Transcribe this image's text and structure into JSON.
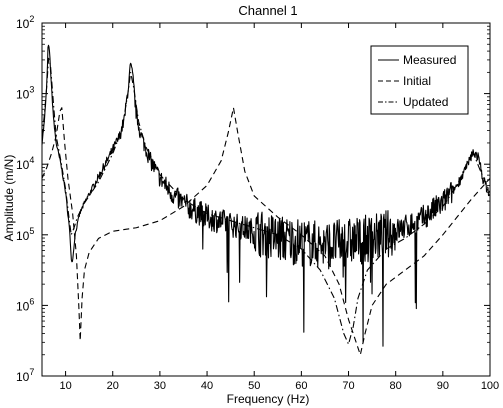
{
  "chart_data": {
    "type": "line",
    "title": "Channel  1",
    "xlabel": "Frequency (Hz)",
    "ylabel": "Amplitude (m/N)",
    "xlim": [
      5,
      100
    ],
    "ylim_exponents": [
      -7,
      -2
    ],
    "y_scale": "log",
    "x_ticks": [
      10,
      20,
      30,
      40,
      50,
      60,
      70,
      80,
      90,
      100
    ],
    "y_tick_labels": [
      {
        "exp": -2,
        "base": "10",
        "power": "2"
      },
      {
        "exp": -3,
        "base": "10",
        "power": "3"
      },
      {
        "exp": -4,
        "base": "10",
        "power": "4"
      },
      {
        "exp": -5,
        "base": "10",
        "power": "5"
      },
      {
        "exp": -6,
        "base": "10",
        "power": "6"
      },
      {
        "exp": -7,
        "base": "10",
        "power": "7"
      }
    ],
    "grid": false,
    "legend_position": "top-right",
    "series": [
      {
        "name": "Measured",
        "style": "solid",
        "noise": 0.18,
        "points": [
          [
            5.0,
            -3.7
          ],
          [
            5.5,
            -3.4
          ],
          [
            6.0,
            -2.9
          ],
          [
            6.3,
            -2.3
          ],
          [
            6.6,
            -2.4
          ],
          [
            7.0,
            -2.9
          ],
          [
            7.5,
            -3.4
          ],
          [
            8.0,
            -3.7
          ],
          [
            9.0,
            -4.0
          ],
          [
            10.0,
            -4.4
          ],
          [
            10.8,
            -4.9
          ],
          [
            11.3,
            -5.4
          ],
          [
            11.6,
            -5.3
          ],
          [
            12.0,
            -5.0
          ],
          [
            13.0,
            -4.7
          ],
          [
            14.0,
            -4.55
          ],
          [
            16.0,
            -4.3
          ],
          [
            18.0,
            -4.05
          ],
          [
            20.0,
            -3.8
          ],
          [
            21.5,
            -3.6
          ],
          [
            22.5,
            -3.35
          ],
          [
            23.3,
            -2.9
          ],
          [
            23.8,
            -2.6
          ],
          [
            24.3,
            -2.8
          ],
          [
            25.0,
            -3.3
          ],
          [
            26.0,
            -3.6
          ],
          [
            28.0,
            -3.95
          ],
          [
            30.0,
            -4.2
          ],
          [
            33.0,
            -4.45
          ],
          [
            36.0,
            -4.6
          ],
          [
            40.0,
            -4.75
          ],
          [
            45.0,
            -4.85
          ],
          [
            50.0,
            -4.95
          ],
          [
            55.0,
            -5.05
          ],
          [
            60.0,
            -5.1
          ],
          [
            65.0,
            -5.15
          ],
          [
            70.0,
            -5.1
          ],
          [
            75.0,
            -5.05
          ],
          [
            80.0,
            -4.95
          ],
          [
            85.0,
            -4.8
          ],
          [
            90.0,
            -4.55
          ],
          [
            93.0,
            -4.3
          ],
          [
            95.0,
            -4.05
          ],
          [
            96.5,
            -3.82
          ],
          [
            97.5,
            -3.9
          ],
          [
            98.5,
            -4.2
          ],
          [
            100.0,
            -4.45
          ]
        ]
      },
      {
        "name": "Initial",
        "style": "dashed",
        "points": [
          [
            5.0,
            -4.2
          ],
          [
            6.0,
            -4.05
          ],
          [
            7.0,
            -3.85
          ],
          [
            8.0,
            -3.6
          ],
          [
            8.8,
            -3.25
          ],
          [
            9.2,
            -3.2
          ],
          [
            9.8,
            -3.7
          ],
          [
            10.5,
            -4.2
          ],
          [
            11.5,
            -4.7
          ],
          [
            12.3,
            -5.3
          ],
          [
            12.8,
            -6.0
          ],
          [
            13.1,
            -6.5
          ],
          [
            13.5,
            -5.9
          ],
          [
            14.0,
            -5.5
          ],
          [
            15.0,
            -5.25
          ],
          [
            17.0,
            -5.05
          ],
          [
            20.0,
            -4.95
          ],
          [
            25.0,
            -4.9
          ],
          [
            30.0,
            -4.8
          ],
          [
            35.0,
            -4.6
          ],
          [
            40.0,
            -4.3
          ],
          [
            43.0,
            -3.95
          ],
          [
            44.5,
            -3.55
          ],
          [
            45.6,
            -3.2
          ],
          [
            46.5,
            -3.55
          ],
          [
            48.0,
            -4.1
          ],
          [
            50.0,
            -4.45
          ],
          [
            55.0,
            -4.75
          ],
          [
            60.0,
            -5.0
          ],
          [
            65.0,
            -5.3
          ],
          [
            68.0,
            -5.7
          ],
          [
            70.0,
            -6.2
          ],
          [
            71.5,
            -6.5
          ],
          [
            72.5,
            -6.7
          ],
          [
            73.5,
            -6.4
          ],
          [
            75.0,
            -6.0
          ],
          [
            78.0,
            -5.7
          ],
          [
            82.0,
            -5.5
          ],
          [
            86.0,
            -5.3
          ],
          [
            90.0,
            -5.0
          ],
          [
            93.0,
            -4.75
          ],
          [
            96.0,
            -4.5
          ],
          [
            98.0,
            -4.35
          ],
          [
            100.0,
            -4.2
          ]
        ]
      },
      {
        "name": "Updated",
        "style": "dashdot",
        "points": [
          [
            5.0,
            -3.6
          ],
          [
            5.5,
            -3.3
          ],
          [
            6.0,
            -2.9
          ],
          [
            6.4,
            -2.5
          ],
          [
            6.8,
            -2.6
          ],
          [
            7.5,
            -3.2
          ],
          [
            8.0,
            -3.6
          ],
          [
            9.0,
            -3.95
          ],
          [
            10.0,
            -4.35
          ],
          [
            10.8,
            -4.8
          ],
          [
            11.2,
            -5.0
          ],
          [
            11.8,
            -4.9
          ],
          [
            12.5,
            -4.75
          ],
          [
            14.0,
            -4.55
          ],
          [
            17.0,
            -4.25
          ],
          [
            20.0,
            -3.85
          ],
          [
            22.0,
            -3.5
          ],
          [
            23.2,
            -3.0
          ],
          [
            23.8,
            -2.7
          ],
          [
            24.4,
            -2.9
          ],
          [
            25.5,
            -3.4
          ],
          [
            27.0,
            -3.75
          ],
          [
            30.0,
            -4.15
          ],
          [
            35.0,
            -4.5
          ],
          [
            40.0,
            -4.7
          ],
          [
            45.0,
            -4.8
          ],
          [
            50.0,
            -4.9
          ],
          [
            55.0,
            -5.0
          ],
          [
            60.0,
            -5.2
          ],
          [
            64.0,
            -5.5
          ],
          [
            67.0,
            -5.9
          ],
          [
            69.0,
            -6.4
          ],
          [
            70.0,
            -6.55
          ],
          [
            71.0,
            -6.3
          ],
          [
            72.0,
            -5.9
          ],
          [
            74.0,
            -5.5
          ],
          [
            78.0,
            -5.2
          ],
          [
            82.0,
            -5.05
          ],
          [
            86.0,
            -4.85
          ],
          [
            90.0,
            -4.6
          ],
          [
            93.0,
            -4.3
          ],
          [
            95.0,
            -4.0
          ],
          [
            96.5,
            -3.85
          ],
          [
            98.0,
            -4.1
          ],
          [
            100.0,
            -4.4
          ]
        ]
      }
    ]
  }
}
